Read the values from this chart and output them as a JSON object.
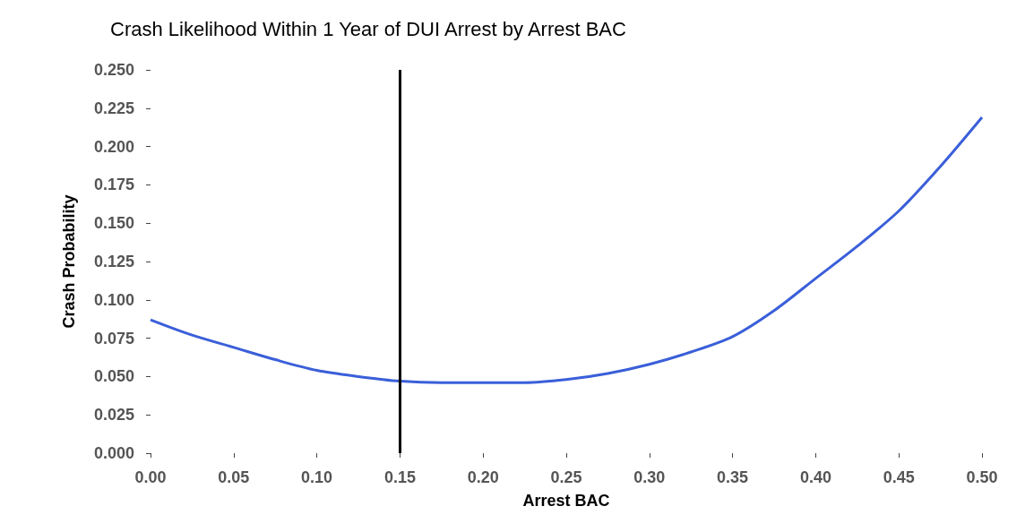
{
  "chart_data": {
    "type": "line",
    "title": "Crash Likelihood Within 1 Year of DUI Arrest by Arrest BAC",
    "xlabel": "Arrest BAC",
    "ylabel": "Crash Probability",
    "series": [
      {
        "color": "#3a5fd9",
        "x": [
          0,
          0.025,
          0.05,
          0.075,
          0.1,
          0.125,
          0.15,
          0.175,
          0.2,
          0.225,
          0.25,
          0.275,
          0.3,
          0.325,
          0.35,
          0.375,
          0.4,
          0.425,
          0.45,
          0.475,
          0.5
        ],
        "values": [
          0.087,
          0.077,
          0.069,
          0.061,
          0.054,
          0.05,
          0.047,
          0.046,
          0.046,
          0.046,
          0.048,
          0.052,
          0.058,
          0.066,
          0.076,
          0.093,
          0.114,
          0.135,
          0.158,
          0.187,
          0.219
        ]
      }
    ],
    "xlim": [
      0,
      0.5
    ],
    "xticks": [
      {
        "value": 0,
        "label": "0.00"
      },
      {
        "value": 0.05,
        "label": "0.05"
      },
      {
        "value": 0.1,
        "label": "0.10"
      },
      {
        "value": 0.15,
        "label": "0.15"
      },
      {
        "value": 0.2,
        "label": "0.20"
      },
      {
        "value": 0.25,
        "label": "0.25"
      },
      {
        "value": 0.3,
        "label": "0.30"
      },
      {
        "value": 0.35,
        "label": "0.35"
      },
      {
        "value": 0.4,
        "label": "0.40"
      },
      {
        "value": 0.45,
        "label": "0.45"
      },
      {
        "value": 0.5,
        "label": "0.50"
      }
    ],
    "ylim": [
      0,
      0.25
    ],
    "yticks": [
      {
        "value": 0,
        "label": "0.000"
      },
      {
        "value": 0.025,
        "label": "0.025"
      },
      {
        "value": 0.05,
        "label": "0.050"
      },
      {
        "value": 0.075,
        "label": "0.075"
      },
      {
        "value": 0.1,
        "label": "0.100"
      },
      {
        "value": 0.125,
        "label": "0.125"
      },
      {
        "value": 0.15,
        "label": "0.150"
      },
      {
        "value": 0.175,
        "label": "0.175"
      },
      {
        "value": 0.2,
        "label": "0.200"
      },
      {
        "value": 0.225,
        "label": "0.225"
      },
      {
        "value": 0.25,
        "label": "0.250"
      }
    ],
    "ref_lines": [
      {
        "axis": "x",
        "value": 0.15,
        "color": "#000000"
      }
    ],
    "grid": false,
    "marker": "none",
    "line_style": "solid"
  }
}
